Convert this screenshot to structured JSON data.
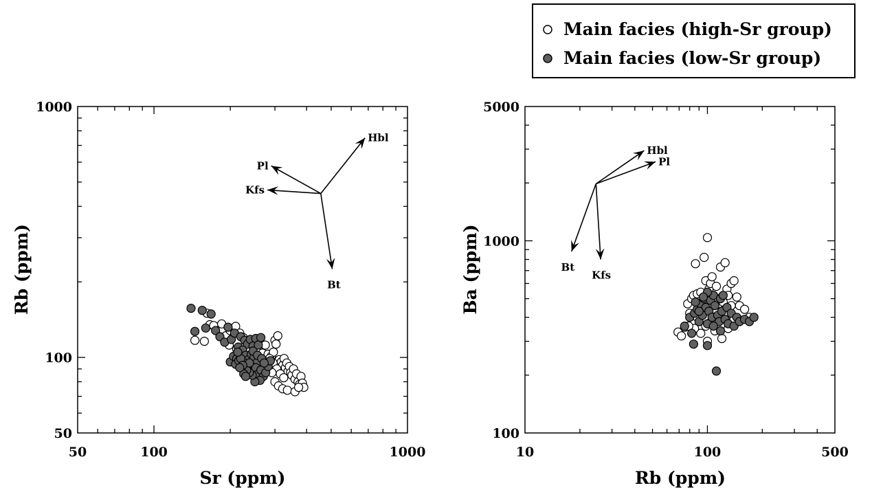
{
  "legend": {
    "entries": [
      {
        "label": "Main facies (high-Sr group)",
        "color": "#ffffff"
      },
      {
        "label": "Main facies (low-Sr group)",
        "color": "#606060"
      }
    ]
  },
  "chart_data": [
    {
      "type": "scatter",
      "xlabel": "Sr (ppm)",
      "ylabel": "Rb (ppm)",
      "xscale": "log",
      "yscale": "log",
      "xlim": [
        50,
        1000
      ],
      "ylim": [
        50,
        1000
      ],
      "xticks": [
        {
          "value": 50,
          "label": "50"
        },
        {
          "value": 100,
          "label": "100"
        },
        {
          "value": 1000,
          "label": "1000"
        }
      ],
      "yticks": [
        {
          "value": 50,
          "label": "50"
        },
        {
          "value": 100,
          "label": "100"
        },
        {
          "value": 1000,
          "label": "1000"
        }
      ],
      "vectors": {
        "origin": [
          455,
          450
        ],
        "items": [
          {
            "label": "Hbl",
            "to": [
              680,
              750
            ]
          },
          {
            "label": "Pl",
            "to": [
              290,
              580
            ]
          },
          {
            "label": "Kfs",
            "to": [
              280,
              465
            ]
          },
          {
            "label": "Bt",
            "to": [
              505,
              225
            ]
          }
        ]
      },
      "series": [
        {
          "name": "Main facies (high-Sr group)",
          "fill": "#ffffff",
          "points": [
            [
              145,
              117
            ],
            [
              158,
              116
            ],
            [
              162,
              150
            ],
            [
              166,
              135
            ],
            [
              172,
              134
            ],
            [
              185,
              136
            ],
            [
              192,
              122
            ],
            [
              200,
              128
            ],
            [
              210,
              133
            ],
            [
              218,
              125
            ],
            [
              225,
              120
            ],
            [
              232,
              116
            ],
            [
              198,
              112
            ],
            [
              212,
              108
            ],
            [
              228,
              110
            ],
            [
              238,
              107
            ],
            [
              245,
              113
            ],
            [
              252,
              109
            ],
            [
              260,
              106
            ],
            [
              268,
              104
            ],
            [
              275,
              112
            ],
            [
              282,
              103
            ],
            [
              290,
              101
            ],
            [
              296,
              105
            ],
            [
              300,
              117
            ],
            [
              303,
              113
            ],
            [
              308,
              122
            ],
            [
              312,
              98
            ],
            [
              318,
              96
            ],
            [
              322,
              93
            ],
            [
              326,
              99
            ],
            [
              330,
              91
            ],
            [
              334,
              95
            ],
            [
              338,
              88
            ],
            [
              342,
              92
            ],
            [
              346,
              87
            ],
            [
              350,
              85
            ],
            [
              355,
              90
            ],
            [
              360,
              82
            ],
            [
              365,
              86
            ],
            [
              370,
              80
            ],
            [
              375,
              78
            ],
            [
              380,
              84
            ],
            [
              385,
              79
            ],
            [
              390,
              76
            ],
            [
              300,
              80
            ],
            [
              310,
              77
            ],
            [
              322,
              75
            ],
            [
              336,
              74
            ],
            [
              360,
              73
            ],
            [
              372,
              76
            ],
            [
              295,
              95
            ],
            [
              305,
              90
            ],
            [
              315,
              86
            ],
            [
              325,
              83
            ],
            [
              286,
              99
            ],
            [
              278,
              94
            ],
            [
              270,
              97
            ],
            [
              264,
              92
            ],
            [
              256,
              100
            ],
            [
              248,
              96
            ],
            [
              240,
              102
            ],
            [
              232,
              98
            ],
            [
              224,
              104
            ],
            [
              216,
              101
            ],
            [
              242,
              91
            ],
            [
              255,
              88
            ],
            [
              268,
              86
            ],
            [
              280,
              90
            ],
            [
              292,
              87
            ]
          ]
        },
        {
          "name": "Main facies (low-Sr group)",
          "fill": "#606060",
          "points": [
            [
              140,
              157
            ],
            [
              145,
              127
            ],
            [
              155,
              154
            ],
            [
              160,
              131
            ],
            [
              168,
              149
            ],
            [
              175,
              128
            ],
            [
              182,
              121
            ],
            [
              190,
              115
            ],
            [
              196,
              132
            ],
            [
              202,
              118
            ],
            [
              208,
              125
            ],
            [
              215,
              110
            ],
            [
              220,
              121
            ],
            [
              228,
              117
            ],
            [
              234,
              113
            ],
            [
              240,
              118
            ],
            [
              246,
              111
            ],
            [
              252,
              119
            ],
            [
              258,
              112
            ],
            [
              264,
              120
            ],
            [
              200,
              96
            ],
            [
              206,
              101
            ],
            [
              212,
              99
            ],
            [
              218,
              104
            ],
            [
              224,
              107
            ],
            [
              230,
              102
            ],
            [
              236,
              98
            ],
            [
              242,
              103
            ],
            [
              248,
              100
            ],
            [
              254,
              95
            ],
            [
              210,
              94
            ],
            [
              216,
              97
            ],
            [
              222,
              92
            ],
            [
              228,
              95
            ],
            [
              234,
              90
            ],
            [
              240,
              93
            ],
            [
              246,
              88
            ],
            [
              252,
              91
            ],
            [
              258,
              86
            ],
            [
              264,
              89
            ],
            [
              270,
              84
            ],
            [
              276,
              87
            ],
            [
              282,
              92
            ],
            [
              288,
              97
            ],
            [
              262,
              81
            ],
            [
              250,
              80
            ],
            [
              244,
              85
            ],
            [
              238,
              87
            ],
            [
              232,
              89
            ],
            [
              226,
              86
            ],
            [
              220,
              99
            ],
            [
              214,
              105
            ],
            [
              246,
              106
            ],
            [
              256,
              102
            ],
            [
              266,
              99
            ],
            [
              272,
              95
            ],
            [
              238,
              95
            ],
            [
              224,
              93
            ],
            [
              218,
              91
            ],
            [
              230,
              84
            ]
          ]
        }
      ]
    },
    {
      "type": "scatter",
      "xlabel": "Rb (ppm)",
      "ylabel": "Ba (ppm)",
      "xscale": "log",
      "yscale": "log",
      "xlim": [
        10,
        500
      ],
      "ylim": [
        100,
        5000
      ],
      "xticks": [
        {
          "value": 10,
          "label": "10"
        },
        {
          "value": 100,
          "label": "100"
        },
        {
          "value": 500,
          "label": "500"
        }
      ],
      "yticks": [
        {
          "value": 100,
          "label": "100"
        },
        {
          "value": 1000,
          "label": "1000"
        },
        {
          "value": 5000,
          "label": "5000"
        }
      ],
      "vectors": {
        "origin": [
          24.5,
          1980
        ],
        "items": [
          {
            "label": "Hbl",
            "to": [
              45,
              2950
            ]
          },
          {
            "label": "Pl",
            "to": [
              52,
              2580
            ]
          },
          {
            "label": "Bt",
            "to": [
              18,
              880
            ]
          },
          {
            "label": "Kfs",
            "to": [
              26,
              800
            ]
          }
        ]
      },
      "series": [
        {
          "name": "Main facies (high-Sr group)",
          "fill": "#ffffff",
          "points": [
            [
              69,
              335
            ],
            [
              72,
              320
            ],
            [
              75,
              355
            ],
            [
              78,
              470
            ],
            [
              80,
              420
            ],
            [
              82,
              500
            ],
            [
              84,
              520
            ],
            [
              86,
              760
            ],
            [
              88,
              530
            ],
            [
              90,
              450
            ],
            [
              92,
              540
            ],
            [
              94,
              480
            ],
            [
              96,
              820
            ],
            [
              98,
              620
            ],
            [
              100,
              1040
            ],
            [
              102,
              560
            ],
            [
              104,
              600
            ],
            [
              106,
              650
            ],
            [
              108,
              520
            ],
            [
              110,
              440
            ],
            [
              112,
              580
            ],
            [
              115,
              470
            ],
            [
              118,
              730
            ],
            [
              120,
              510
            ],
            [
              122,
              480
            ],
            [
              125,
              770
            ],
            [
              128,
              560
            ],
            [
              130,
              520
            ],
            [
              135,
              600
            ],
            [
              140,
              620
            ],
            [
              145,
              510
            ],
            [
              150,
              460
            ],
            [
              160,
              440
            ],
            [
              170,
              400
            ],
            [
              120,
              310
            ],
            [
              100,
              300
            ],
            [
              92,
              330
            ],
            [
              85,
              350
            ],
            [
              130,
              350
            ],
            [
              140,
              390
            ],
            [
              110,
              340
            ],
            [
              105,
              380
            ],
            [
              98,
              360
            ],
            [
              88,
              400
            ],
            [
              95,
              440
            ],
            [
              102,
              470
            ],
            [
              115,
              400
            ],
            [
              125,
              420
            ],
            [
              135,
              460
            ],
            [
              79,
              360
            ]
          ]
        },
        {
          "name": "Main facies (low-Sr group)",
          "fill": "#606060",
          "points": [
            [
              75,
              360
            ],
            [
              80,
              400
            ],
            [
              82,
              330
            ],
            [
              84,
              290
            ],
            [
              85,
              420
            ],
            [
              88,
              440
            ],
            [
              90,
              380
            ],
            [
              92,
              470
            ],
            [
              94,
              410
            ],
            [
              96,
              500
            ],
            [
              98,
              450
            ],
            [
              100,
              370
            ],
            [
              100,
              285
            ],
            [
              102,
              430
            ],
            [
              104,
              490
            ],
            [
              106,
              400
            ],
            [
              108,
              520
            ],
            [
              110,
              460
            ],
            [
              112,
              210
            ],
            [
              114,
              410
            ],
            [
              116,
              380
            ],
            [
              118,
              500
            ],
            [
              120,
              430
            ],
            [
              122,
              520
            ],
            [
              125,
              390
            ],
            [
              128,
              450
            ],
            [
              130,
              370
            ],
            [
              135,
              420
            ],
            [
              140,
              360
            ],
            [
              145,
              400
            ],
            [
              150,
              380
            ],
            [
              160,
              390
            ],
            [
              170,
              380
            ],
            [
              180,
              400
            ],
            [
              100,
              540
            ],
            [
              95,
              510
            ],
            [
              90,
              430
            ],
            [
              86,
              480
            ],
            [
              108,
              360
            ],
            [
              118,
              340
            ]
          ]
        }
      ]
    }
  ]
}
